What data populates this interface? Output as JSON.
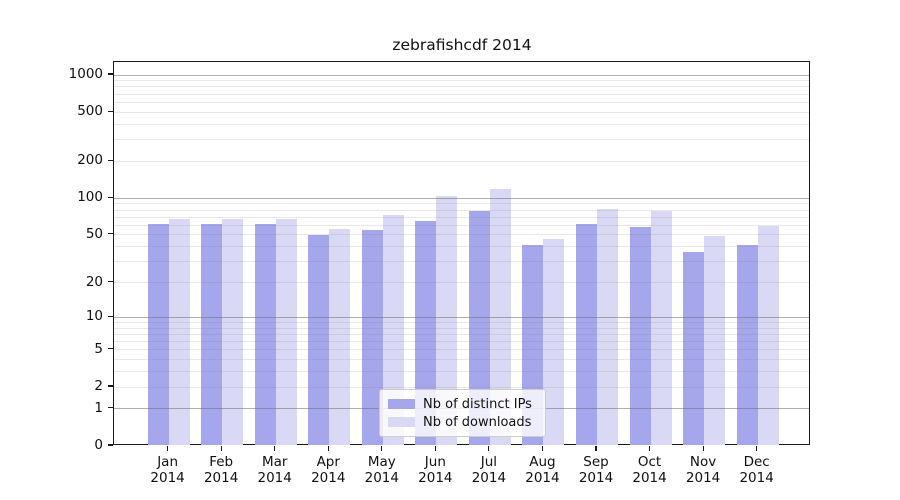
{
  "chart_data": {
    "type": "bar",
    "title": "zebrafishcdf 2014",
    "year": "2014",
    "categories": [
      "Jan",
      "Feb",
      "Mar",
      "Apr",
      "May",
      "Jun",
      "Jul",
      "Aug",
      "Sep",
      "Oct",
      "Nov",
      "Dec"
    ],
    "series": [
      {
        "name": "Nb of distinct IPs",
        "color": "#a6a6ec",
        "values": [
          62,
          62,
          61,
          50,
          55,
          65,
          79,
          41,
          61,
          58,
          36,
          41
        ]
      },
      {
        "name": "Nb of downloads",
        "color": "#d9d9f6",
        "values": [
          68,
          68,
          67,
          56,
          73,
          104,
          119,
          46,
          82,
          79,
          49,
          59
        ]
      }
    ],
    "y_scale": "log10(1+x)",
    "ylim": [
      0,
      1000
    ],
    "y_ticks": [
      0,
      1,
      2,
      5,
      10,
      20,
      50,
      100,
      200,
      500,
      1000
    ],
    "gridlines": {
      "decade_values": [
        1,
        10,
        100,
        1000
      ],
      "light_values": [
        2,
        5,
        20,
        50,
        200,
        500,
        3,
        4,
        6,
        7,
        8,
        9,
        30,
        40,
        60,
        70,
        80,
        90,
        300,
        400,
        600,
        700,
        800,
        900
      ],
      "decade_color": "rgba(110,110,110,0.55)",
      "light_color": "rgba(130,130,130,0.18)"
    },
    "legend_position": "lower center",
    "colors": {
      "spine": "#1a1a1a",
      "text": "#111111",
      "background": "#ffffff",
      "legend_background": "rgba(255,255,255,0.8)",
      "legend_border": "#cccccc"
    }
  }
}
